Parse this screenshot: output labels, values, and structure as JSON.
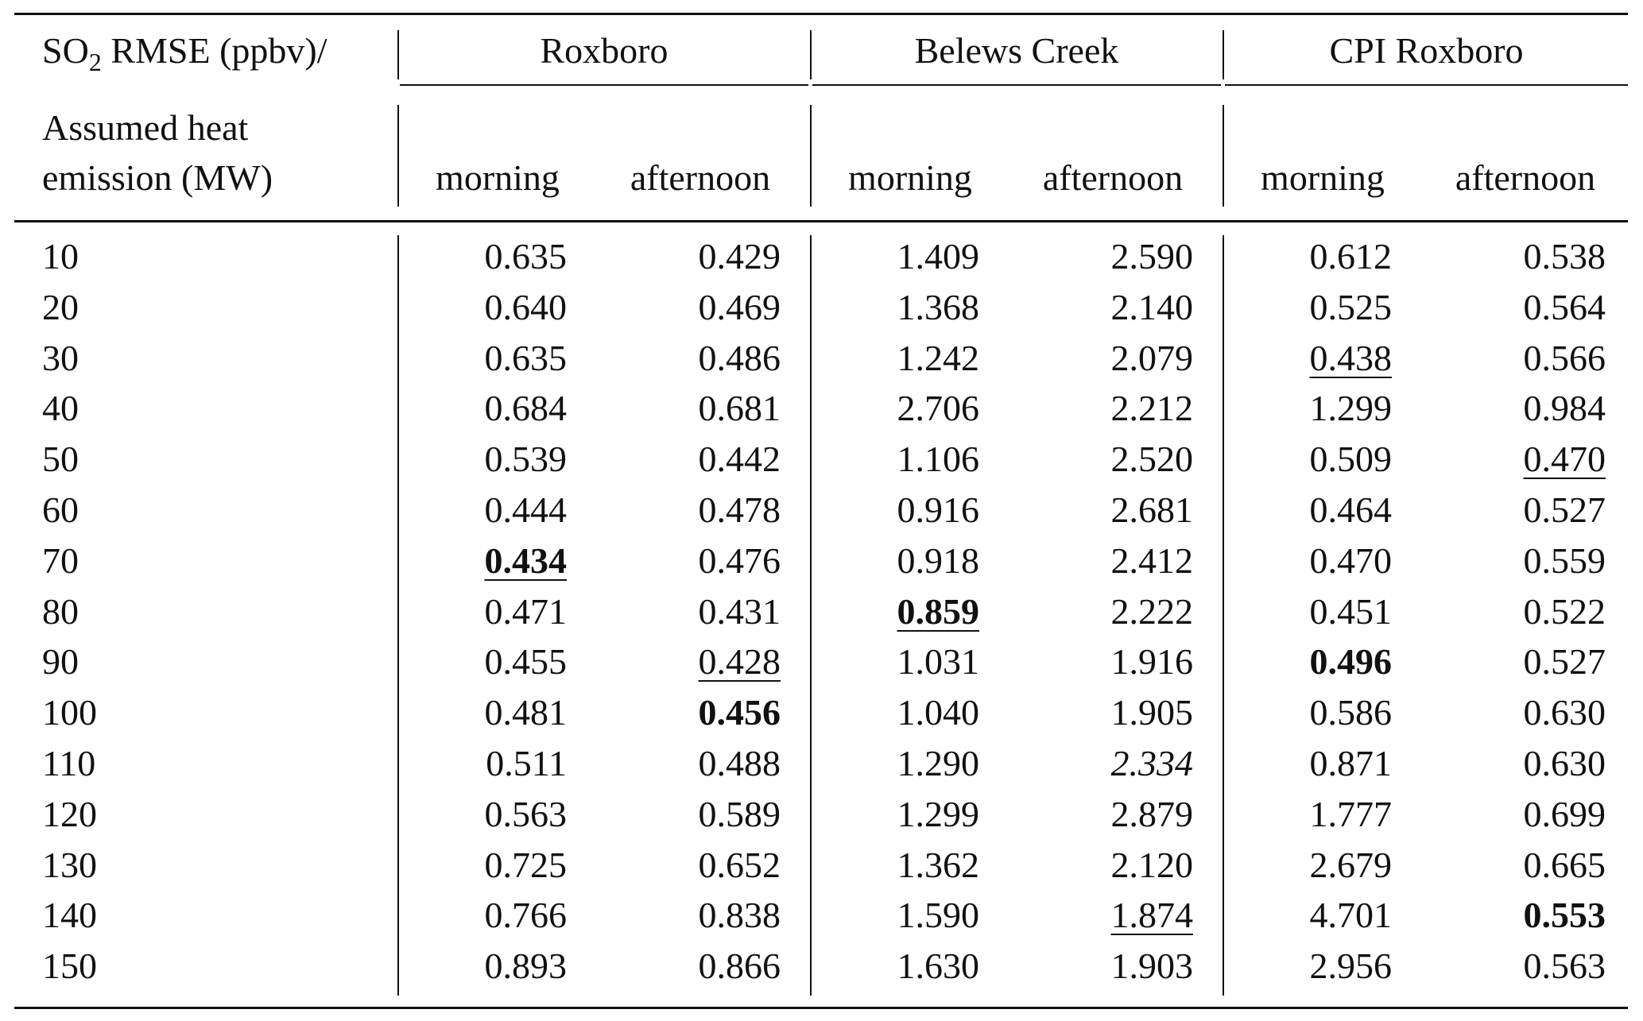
{
  "header": {
    "corner_line1_prefix": "SO",
    "corner_line1_sub": "2",
    "corner_line1_suffix": " RMSE (ppbv)/",
    "corner_line2a": "Assumed heat",
    "corner_line2b": "emission (MW)",
    "groups": [
      "Roxboro",
      "Belews Creek",
      "CPI Roxboro"
    ],
    "subcols": [
      "morning",
      "afternoon",
      "morning",
      "afternoon",
      "morning",
      "afternoon"
    ]
  },
  "rows": [
    {
      "label": "10",
      "cells": [
        {
          "v": "0.635"
        },
        {
          "v": "0.429"
        },
        {
          "v": "1.409"
        },
        {
          "v": "2.590"
        },
        {
          "v": "0.612"
        },
        {
          "v": "0.538"
        }
      ]
    },
    {
      "label": "20",
      "cells": [
        {
          "v": "0.640"
        },
        {
          "v": "0.469"
        },
        {
          "v": "1.368"
        },
        {
          "v": "2.140"
        },
        {
          "v": "0.525"
        },
        {
          "v": "0.564"
        }
      ]
    },
    {
      "label": "30",
      "cells": [
        {
          "v": "0.635"
        },
        {
          "v": "0.486"
        },
        {
          "v": "1.242"
        },
        {
          "v": "2.079"
        },
        {
          "v": "0.438",
          "u": true
        },
        {
          "v": "0.566"
        }
      ]
    },
    {
      "label": "40",
      "cells": [
        {
          "v": "0.684"
        },
        {
          "v": "0.681"
        },
        {
          "v": "2.706"
        },
        {
          "v": "2.212"
        },
        {
          "v": "1.299"
        },
        {
          "v": "0.984"
        }
      ]
    },
    {
      "label": "50",
      "cells": [
        {
          "v": "0.539"
        },
        {
          "v": "0.442"
        },
        {
          "v": "1.106"
        },
        {
          "v": "2.520"
        },
        {
          "v": "0.509"
        },
        {
          "v": "0.470",
          "u": true
        }
      ]
    },
    {
      "label": "60",
      "cells": [
        {
          "v": "0.444"
        },
        {
          "v": "0.478"
        },
        {
          "v": "0.916"
        },
        {
          "v": "2.681"
        },
        {
          "v": "0.464"
        },
        {
          "v": "0.527"
        }
      ]
    },
    {
      "label": "70",
      "cells": [
        {
          "v": "0.434",
          "b": true,
          "u": true
        },
        {
          "v": "0.476"
        },
        {
          "v": "0.918"
        },
        {
          "v": "2.412"
        },
        {
          "v": "0.470"
        },
        {
          "v": "0.559"
        }
      ]
    },
    {
      "label": "80",
      "cells": [
        {
          "v": "0.471"
        },
        {
          "v": "0.431"
        },
        {
          "v": "0.859",
          "b": true,
          "u": true
        },
        {
          "v": "2.222"
        },
        {
          "v": "0.451"
        },
        {
          "v": "0.522"
        }
      ]
    },
    {
      "label": "90",
      "cells": [
        {
          "v": "0.455"
        },
        {
          "v": "0.428",
          "u": true
        },
        {
          "v": "1.031"
        },
        {
          "v": "1.916"
        },
        {
          "v": "0.496",
          "b": true
        },
        {
          "v": "0.527"
        }
      ]
    },
    {
      "label": "100",
      "cells": [
        {
          "v": "0.481"
        },
        {
          "v": "0.456",
          "b": true
        },
        {
          "v": "1.040"
        },
        {
          "v": "1.905"
        },
        {
          "v": "0.586"
        },
        {
          "v": "0.630"
        }
      ]
    },
    {
      "label": "110",
      "cells": [
        {
          "v": "0.511"
        },
        {
          "v": "0.488"
        },
        {
          "v": "1.290"
        },
        {
          "v": "2.334",
          "i": true
        },
        {
          "v": "0.871"
        },
        {
          "v": "0.630"
        }
      ]
    },
    {
      "label": "120",
      "cells": [
        {
          "v": "0.563"
        },
        {
          "v": "0.589"
        },
        {
          "v": "1.299"
        },
        {
          "v": "2.879"
        },
        {
          "v": "1.777"
        },
        {
          "v": "0.699"
        }
      ]
    },
    {
      "label": "130",
      "cells": [
        {
          "v": "0.725"
        },
        {
          "v": "0.652"
        },
        {
          "v": "1.362"
        },
        {
          "v": "2.120"
        },
        {
          "v": "2.679"
        },
        {
          "v": "0.665"
        }
      ]
    },
    {
      "label": "140",
      "cells": [
        {
          "v": "0.766"
        },
        {
          "v": "0.838"
        },
        {
          "v": "1.590"
        },
        {
          "v": "1.874",
          "u": true
        },
        {
          "v": "4.701"
        },
        {
          "v": "0.553",
          "b": true
        }
      ]
    },
    {
      "label": "150",
      "cells": [
        {
          "v": "0.893"
        },
        {
          "v": "0.866"
        },
        {
          "v": "1.630"
        },
        {
          "v": "1.903"
        },
        {
          "v": "2.956"
        },
        {
          "v": "0.563"
        }
      ]
    }
  ]
}
